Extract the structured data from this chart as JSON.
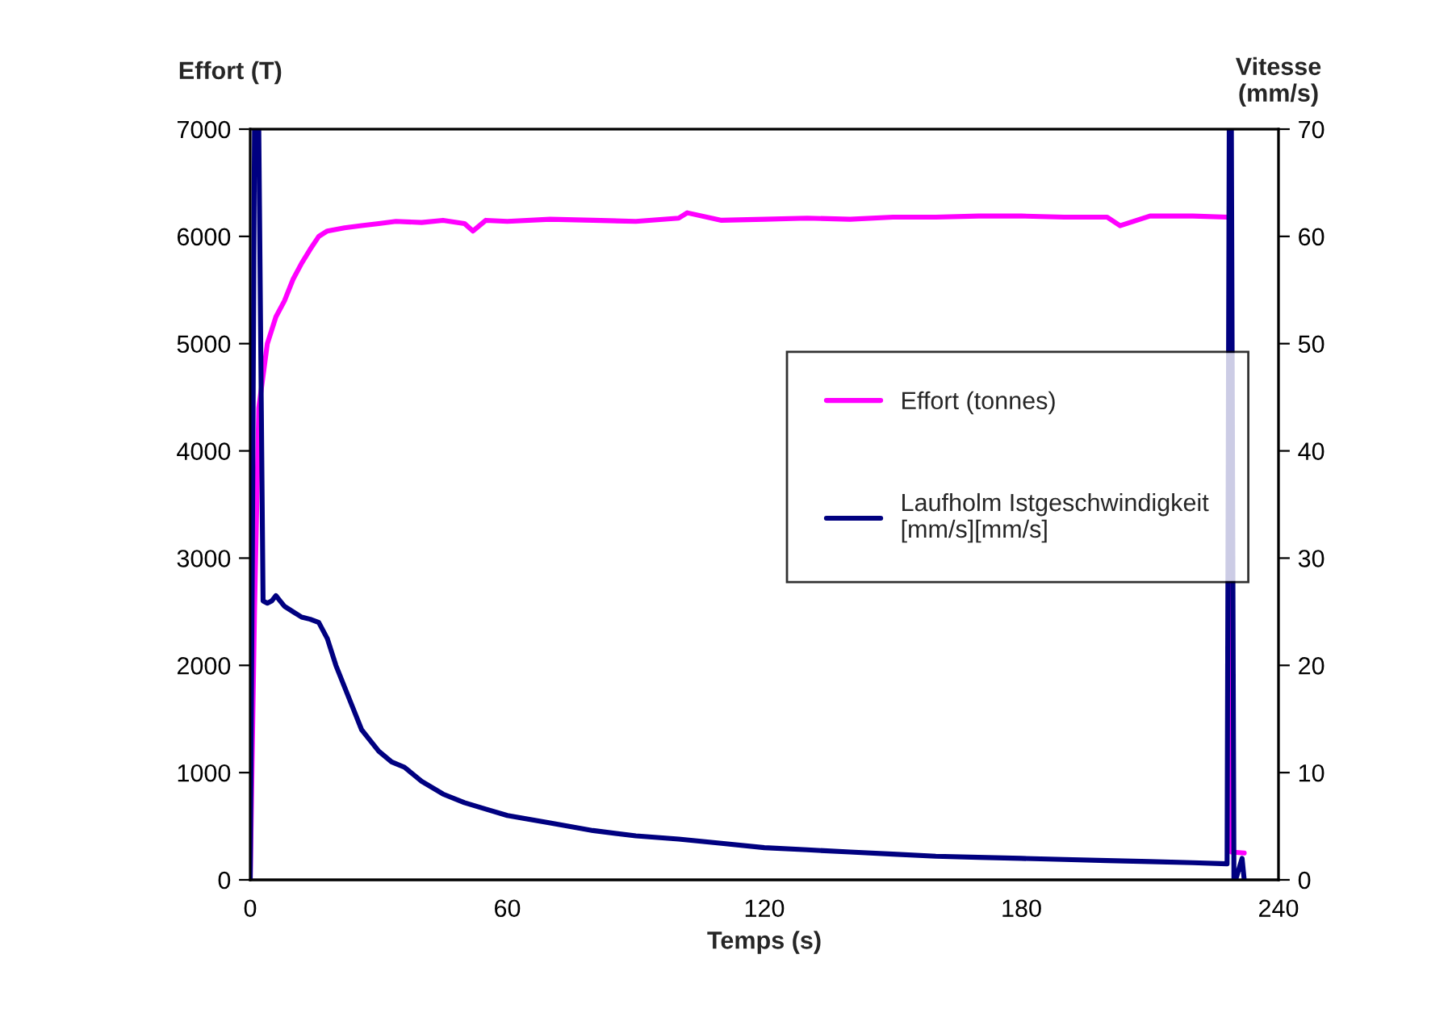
{
  "chart_data": {
    "type": "line",
    "xlabel": "Temps (s)",
    "ylabel": "Effort (T)",
    "y2label": "Vitesse\n(mm/s)",
    "xlim": [
      0,
      240
    ],
    "xticks": [
      0,
      60,
      120,
      180,
      240
    ],
    "ylim": [
      0,
      7000
    ],
    "yticks": [
      0,
      1000,
      2000,
      3000,
      4000,
      5000,
      6000,
      7000
    ],
    "y2lim": [
      0,
      70
    ],
    "y2ticks": [
      0,
      10,
      20,
      30,
      40,
      50,
      60,
      70
    ],
    "grid": false,
    "legend": "right",
    "marker": "none",
    "line_style": "solid",
    "series": [
      {
        "name": "Effort (tonnes)",
        "color": "#ff00ff",
        "x": [
          0,
          1,
          2,
          3,
          4,
          6,
          8,
          10,
          12,
          14,
          16,
          18,
          22,
          26,
          30,
          34,
          40,
          45,
          50,
          52,
          55,
          60,
          70,
          80,
          90,
          100,
          102,
          110,
          120,
          130,
          140,
          150,
          160,
          170,
          180,
          190,
          200,
          203,
          210,
          220,
          228,
          228.5,
          229,
          232
        ],
        "values": [
          0,
          2500,
          4400,
          4700,
          5000,
          5250,
          5400,
          5600,
          5750,
          5880,
          6000,
          6050,
          6080,
          6100,
          6120,
          6140,
          6130,
          6150,
          6120,
          6050,
          6150,
          6140,
          6160,
          6150,
          6140,
          6170,
          6220,
          6150,
          6160,
          6170,
          6160,
          6180,
          6180,
          6190,
          6190,
          6180,
          6180,
          6100,
          6190,
          6190,
          6180,
          6170,
          260,
          250
        ]
      },
      {
        "name": "Laufholm Istgeschwindigkeit\n[mm/s][mm/s]",
        "color": "#000080",
        "axis": "y2",
        "x": [
          0,
          0.5,
          1,
          2,
          3,
          4,
          5,
          6,
          7,
          8,
          10,
          12,
          14,
          16,
          18,
          20,
          22,
          24,
          26,
          28,
          30,
          33,
          36,
          40,
          45,
          50,
          55,
          60,
          70,
          80,
          90,
          100,
          110,
          120,
          130,
          140,
          150,
          160,
          170,
          180,
          190,
          200,
          210,
          220,
          228,
          228.5,
          229,
          229.6,
          230,
          231.5,
          232
        ],
        "values": [
          0,
          30,
          70,
          70,
          26,
          25.8,
          26,
          26.5,
          26,
          25.5,
          25,
          24.5,
          24.3,
          24,
          22.5,
          20,
          18,
          16,
          14,
          13,
          12,
          11,
          10.5,
          9.2,
          8,
          7.2,
          6.6,
          6,
          5.3,
          4.6,
          4.1,
          3.8,
          3.4,
          3,
          2.8,
          2.6,
          2.4,
          2.2,
          2.1,
          2,
          1.9,
          1.8,
          1.7,
          1.6,
          1.5,
          70,
          70,
          0,
          0,
          2,
          0
        ]
      }
    ]
  }
}
